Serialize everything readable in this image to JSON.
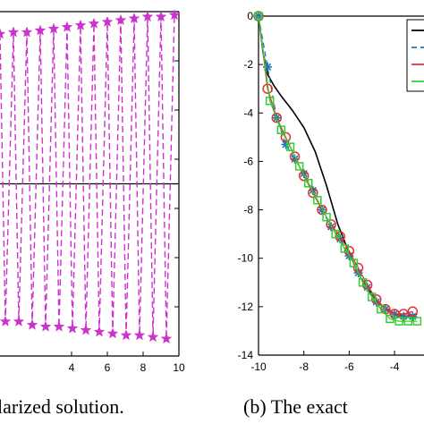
{
  "captions": {
    "left": "larized solution.",
    "right": "(b) The exact"
  },
  "chart_data": [
    {
      "type": "line",
      "xticks": [
        4,
        6,
        8,
        10
      ],
      "xlim": [
        0,
        10
      ],
      "ylim": [
        -1,
        1
      ],
      "hline_y": 0,
      "colors": {
        "series": "#cc33cc",
        "axis": "#000000"
      },
      "marker": "star",
      "line_style": "dashed",
      "series": [
        {
          "x": [
            0.0,
            0.3,
            0.75,
            1.05,
            1.5,
            1.8,
            2.25,
            2.55,
            3.0,
            3.3,
            3.75,
            4.05,
            4.5,
            4.8,
            5.25,
            5.55,
            6.0,
            6.3,
            6.75,
            7.05,
            7.5,
            7.8,
            8.25,
            8.55,
            9.0,
            9.3,
            9.75
          ],
          "y": [
            0.87,
            -0.8,
            0.88,
            -0.8,
            0.88,
            -0.82,
            0.89,
            -0.83,
            0.9,
            -0.83,
            0.91,
            -0.84,
            0.92,
            -0.85,
            0.93,
            -0.86,
            0.94,
            -0.87,
            0.95,
            -0.88,
            0.96,
            -0.88,
            0.97,
            -0.89,
            0.97,
            -0.9,
            0.98
          ]
        }
      ]
    },
    {
      "type": "line",
      "xticks": [
        -10,
        -8,
        -6,
        -4
      ],
      "yticks": [
        0,
        -2,
        -4,
        -6,
        -8,
        -10,
        -12,
        -14
      ],
      "xlim": [
        -10,
        -2.7
      ],
      "ylim": [
        -14,
        0
      ],
      "series": [
        {
          "style": "solid",
          "color": "#000000",
          "x": [
            -10,
            -9.8,
            -9.6,
            -9.3,
            -9,
            -8.5,
            -8,
            -7.5,
            -7,
            -6.5,
            -6,
            -5.5,
            -5,
            -4.5,
            -4,
            -3.5,
            -3
          ],
          "y": [
            0,
            -1.5,
            -2.4,
            -2.9,
            -3.3,
            -3.9,
            -4.6,
            -5.6,
            -7.0,
            -8.6,
            -9.8,
            -10.8,
            -11.5,
            -12.0,
            -12.3,
            -12.4,
            -12.3
          ]
        },
        {
          "style": "dashed",
          "color": "#1f77b4",
          "marker": "asterisk",
          "x": [
            -10,
            -9.6,
            -9.2,
            -8.8,
            -8.4,
            -8.0,
            -7.6,
            -7.2,
            -6.8,
            -6.4,
            -6.0,
            -5.6,
            -5.2,
            -4.8,
            -4.4,
            -4.0,
            -3.6,
            -3.2
          ],
          "y": [
            0,
            -2.1,
            -4.2,
            -5.3,
            -5.9,
            -6.5,
            -7.2,
            -8.0,
            -8.7,
            -9.2,
            -9.9,
            -10.6,
            -11.2,
            -11.8,
            -12.1,
            -12.3,
            -12.4,
            -12.4
          ]
        },
        {
          "style": "solid",
          "color": "#e03030",
          "marker": "circle",
          "x": [
            -10,
            -9.6,
            -9.2,
            -8.8,
            -8.4,
            -8.0,
            -7.6,
            -7.2,
            -6.8,
            -6.4,
            -6.0,
            -5.6,
            -5.2,
            -4.8,
            -4.4,
            -4.0,
            -3.6,
            -3.2
          ],
          "y": [
            0,
            -3.0,
            -4.2,
            -5.0,
            -5.8,
            -6.6,
            -7.3,
            -8.0,
            -8.6,
            -9.1,
            -9.7,
            -10.4,
            -11.1,
            -11.7,
            -12.1,
            -12.3,
            -12.3,
            -12.2
          ]
        },
        {
          "style": "solid",
          "color": "#33cc33",
          "marker": "square",
          "x": [
            -10,
            -9.5,
            -9.0,
            -8.6,
            -8.2,
            -7.8,
            -7.4,
            -7.0,
            -6.6,
            -6.2,
            -5.8,
            -5.4,
            -5.0,
            -4.6,
            -4.2,
            -3.8,
            -3.4,
            -3.0
          ],
          "y": [
            0,
            -3.5,
            -4.7,
            -5.4,
            -6.2,
            -6.9,
            -7.6,
            -8.3,
            -9.0,
            -9.6,
            -10.2,
            -11.0,
            -11.6,
            -12.1,
            -12.5,
            -12.6,
            -12.6,
            -12.6
          ]
        }
      ],
      "legend_placement": "top-right"
    }
  ]
}
